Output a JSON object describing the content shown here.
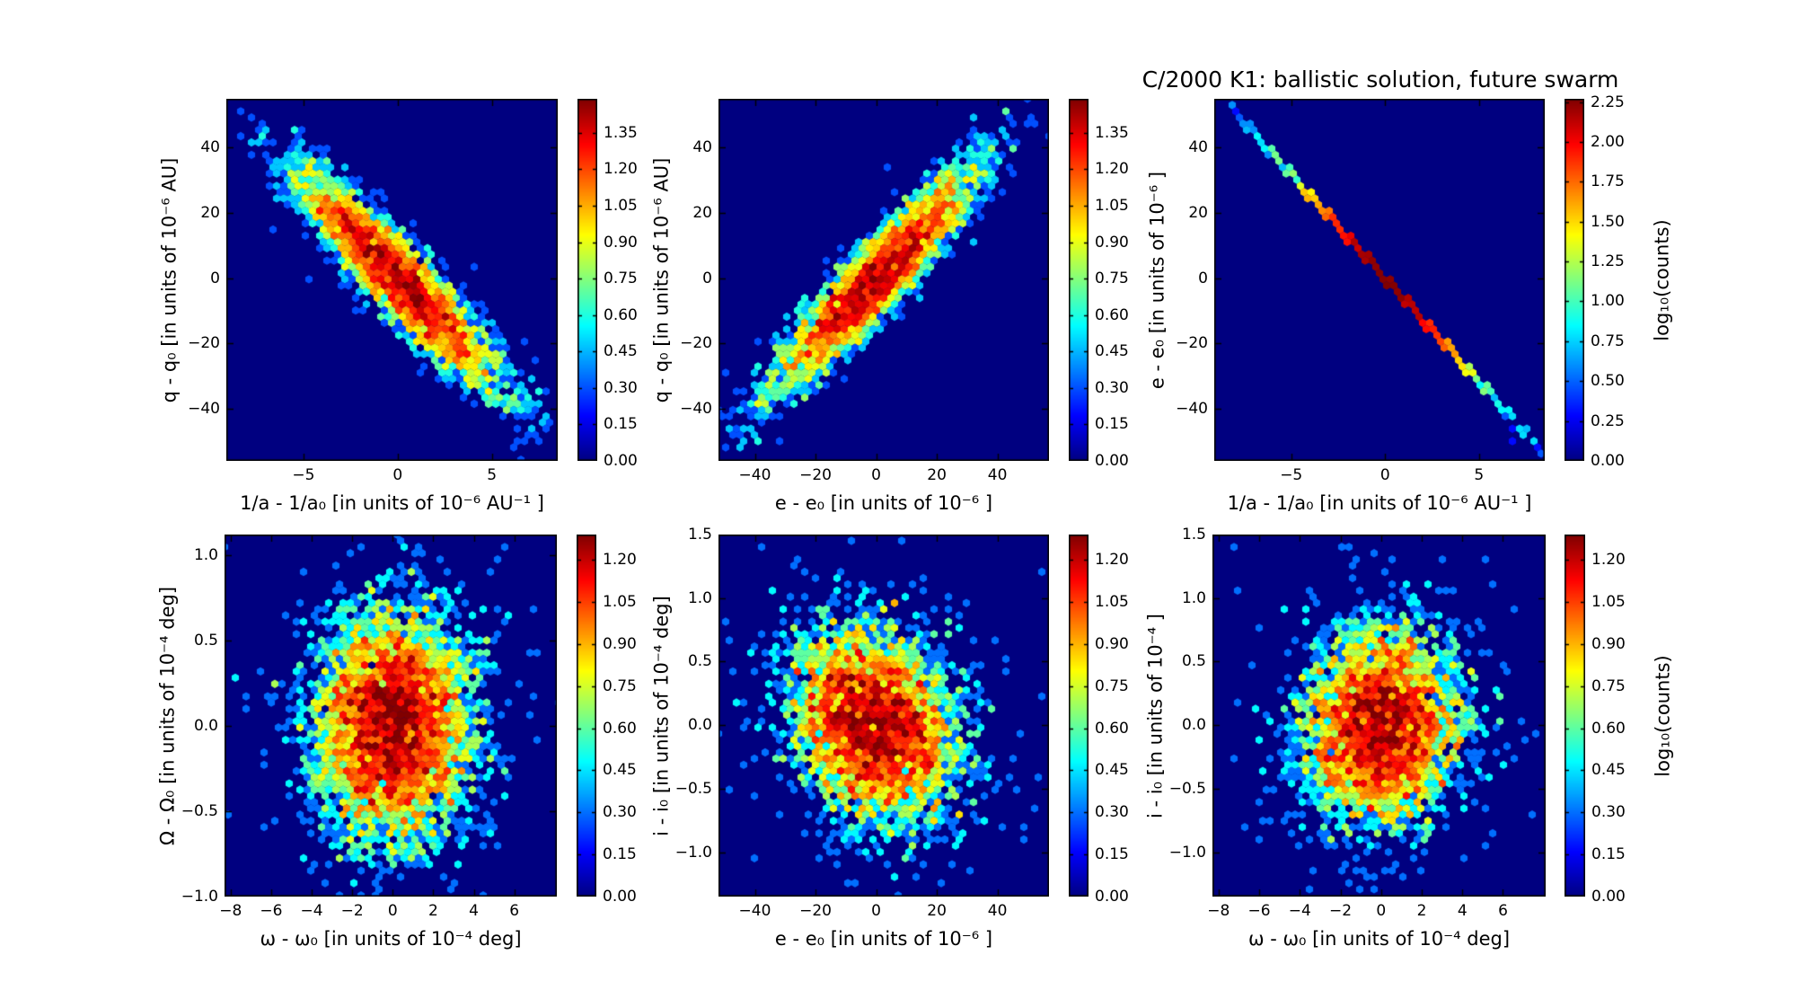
{
  "title": "C/2000 K1:  ballistic solution, future swarm",
  "colormap": "jet",
  "background_color": "#000080",
  "chart_data": [
    {
      "name": "q-vs-inverse-a",
      "type": "hexbin",
      "xlabel": "1/a - 1/a₀ [in units of 10⁻⁶ AU⁻¹ ]",
      "ylabel": "q - q₀ [in units of 10⁻⁶ AU]",
      "xlim": [
        -9.1,
        8.5
      ],
      "ylim": [
        -56,
        55
      ],
      "xtick_values": [
        -5,
        0,
        5
      ],
      "xtick_labels": [
        "−5",
        "0",
        "5"
      ],
      "ytick_values": [
        40,
        20,
        0,
        -20,
        -40
      ],
      "ytick_labels": [
        "40",
        "20",
        "0",
        "−20",
        "−40"
      ],
      "colorbar": {
        "vmax": 1.49,
        "tick_values": [
          1.35,
          1.2,
          1.05,
          0.9,
          0.75,
          0.6,
          0.45,
          0.3,
          0.15,
          0.0
        ],
        "tick_labels": [
          "1.35",
          "1.20",
          "1.05",
          "0.90",
          "0.75",
          "0.60",
          "0.45",
          "0.30",
          "0.15",
          "0.00"
        ],
        "label": ""
      },
      "distribution": {
        "shape": "gaussian",
        "center": [
          0,
          0
        ],
        "sigma_x": 3.0,
        "sigma_y": 18.5,
        "correlation": -0.92,
        "peak_log10_counts": 1.41
      }
    },
    {
      "name": "q-vs-e",
      "type": "hexbin",
      "xlabel": "e - e₀ [in units of 10⁻⁶ ]",
      "ylabel": "q - q₀ [in units of 10⁻⁶ AU]",
      "xlim": [
        -52,
        57
      ],
      "ylim": [
        -56,
        55
      ],
      "xtick_values": [
        -40,
        -20,
        0,
        20,
        40
      ],
      "xtick_labels": [
        "−40",
        "−20",
        "0",
        "20",
        "40"
      ],
      "ytick_values": [
        40,
        20,
        0,
        -20,
        -40
      ],
      "ytick_labels": [
        "40",
        "20",
        "0",
        "−20",
        "−40"
      ],
      "colorbar": {
        "vmax": 1.49,
        "tick_values": [
          1.35,
          1.2,
          1.05,
          0.9,
          0.75,
          0.6,
          0.45,
          0.3,
          0.15,
          0.0
        ],
        "tick_labels": [
          "1.35",
          "1.20",
          "1.05",
          "0.90",
          "0.75",
          "0.60",
          "0.45",
          "0.30",
          "0.15",
          "0.00"
        ],
        "label": ""
      },
      "distribution": {
        "shape": "gaussian",
        "center": [
          0,
          0
        ],
        "sigma_x": 18.5,
        "sigma_y": 18.5,
        "correlation": 0.92,
        "peak_log10_counts": 1.41
      }
    },
    {
      "name": "e-vs-inverse-a",
      "type": "hexbin",
      "xlabel": "1/a - 1/a₀ [in units of 10⁻⁶ AU⁻¹ ]",
      "ylabel": "e - e₀ [in units of 10⁻⁶ ]",
      "xlim": [
        -9.1,
        8.5
      ],
      "ylim": [
        -56,
        55
      ],
      "xtick_values": [
        -5,
        0,
        5
      ],
      "xtick_labels": [
        "−5",
        "0",
        "5"
      ],
      "ytick_values": [
        40,
        20,
        0,
        -20,
        -40
      ],
      "ytick_labels": [
        "40",
        "20",
        "0",
        "−20",
        "−40"
      ],
      "colorbar": {
        "vmax": 2.27,
        "tick_values": [
          2.25,
          2.0,
          1.75,
          1.5,
          1.25,
          1.0,
          0.75,
          0.5,
          0.25,
          0.0
        ],
        "tick_labels": [
          "2.25",
          "2.00",
          "1.75",
          "1.50",
          "1.25",
          "1.00",
          "0.75",
          "0.50",
          "0.25",
          "0.00"
        ],
        "label": "log₁₀(counts)"
      },
      "distribution": {
        "shape": "linear-ridge",
        "slope": -6.35,
        "sigma_along_x": 6.1,
        "peak_log10_counts": 2.26,
        "x_extent": [
          -8.2,
          8.5
        ],
        "stray_cluster": {
          "center": [
            7.0,
            -49
          ],
          "amplitude": 1.3,
          "sigma_x": 0.35,
          "sigma_y": 2.5
        }
      }
    },
    {
      "name": "Omega-vs-omega",
      "type": "hexbin",
      "xlabel": "ω - ω₀ [in units of 10⁻⁴ deg]",
      "ylabel": "Ω - Ω₀ [in units of 10⁻⁴ deg]",
      "xlim": [
        -8.3,
        8.1
      ],
      "ylim": [
        -1.0,
        1.12
      ],
      "xtick_values": [
        -8,
        -6,
        -4,
        -2,
        0,
        2,
        4,
        6
      ],
      "xtick_labels": [
        "−8",
        "−6",
        "−4",
        "−2",
        "0",
        "2",
        "4",
        "6"
      ],
      "ytick_values": [
        1.0,
        0.5,
        0.0,
        -0.5,
        -1.0
      ],
      "ytick_labels": [
        "1.0",
        "0.5",
        "0.0",
        "−0.5",
        "−1.0"
      ],
      "colorbar": {
        "vmax": 1.29,
        "tick_values": [
          1.2,
          1.05,
          0.9,
          0.75,
          0.6,
          0.45,
          0.3,
          0.15,
          0.0
        ],
        "tick_labels": [
          "1.20",
          "1.05",
          "0.90",
          "0.75",
          "0.60",
          "0.45",
          "0.30",
          "0.15",
          "0.00"
        ],
        "label": ""
      },
      "distribution": {
        "shape": "gaussian",
        "center": [
          0,
          0
        ],
        "sigma_x": 2.1,
        "sigma_y": 0.37,
        "correlation": 0.03,
        "peak_log10_counts": 1.23
      }
    },
    {
      "name": "i-vs-e",
      "type": "hexbin",
      "xlabel": "e - e₀ [in units of 10⁻⁶ ]",
      "ylabel": "i - i₀ [in units of 10⁻⁴ deg]",
      "xlim": [
        -52,
        57
      ],
      "ylim": [
        -1.35,
        1.5
      ],
      "xtick_values": [
        -40,
        -20,
        0,
        20,
        40
      ],
      "xtick_labels": [
        "−40",
        "−20",
        "0",
        "20",
        "40"
      ],
      "ytick_values": [
        1.5,
        1.0,
        0.5,
        0.0,
        -0.5,
        -1.0
      ],
      "ytick_labels": [
        "1.5",
        "1.0",
        "0.5",
        "0.0",
        "−0.5",
        "−1.0"
      ],
      "colorbar": {
        "vmax": 1.29,
        "tick_values": [
          1.2,
          1.05,
          0.9,
          0.75,
          0.6,
          0.45,
          0.3,
          0.15,
          0.0
        ],
        "tick_labels": [
          "1.20",
          "1.05",
          "0.90",
          "0.75",
          "0.60",
          "0.45",
          "0.30",
          "0.15",
          "0.00"
        ],
        "label": ""
      },
      "distribution": {
        "shape": "gaussian",
        "center": [
          0,
          0
        ],
        "sigma_x": 15,
        "sigma_y": 0.42,
        "correlation": -0.22,
        "peak_log10_counts": 1.23
      }
    },
    {
      "name": "i-vs-omega",
      "type": "hexbin",
      "xlabel": "ω - ω₀ [in units of 10⁻⁴ deg]",
      "ylabel": "i - i₀ [in units of 10⁻⁴ ]",
      "xlim": [
        -8.3,
        8.1
      ],
      "ylim": [
        -1.35,
        1.5
      ],
      "xtick_values": [
        -8,
        -6,
        -4,
        -2,
        0,
        2,
        4,
        6
      ],
      "xtick_labels": [
        "−8",
        "−6",
        "−4",
        "−2",
        "0",
        "2",
        "4",
        "6"
      ],
      "ytick_values": [
        1.5,
        1.0,
        0.5,
        0.0,
        -0.5,
        -1.0
      ],
      "ytick_labels": [
        "1.5",
        "1.0",
        "0.5",
        "0.0",
        "−0.5",
        "−1.0"
      ],
      "colorbar": {
        "vmax": 1.29,
        "tick_values": [
          1.2,
          1.05,
          0.9,
          0.75,
          0.6,
          0.45,
          0.3,
          0.15,
          0.0
        ],
        "tick_labels": [
          "1.20",
          "1.05",
          "0.90",
          "0.75",
          "0.60",
          "0.45",
          "0.30",
          "0.15",
          "0.00"
        ],
        "label": "log₁₀(counts)"
      },
      "distribution": {
        "shape": "gaussian",
        "center": [
          0,
          0
        ],
        "sigma_x": 2.1,
        "sigma_y": 0.42,
        "correlation": 0.05,
        "peak_log10_counts": 1.23
      }
    }
  ]
}
